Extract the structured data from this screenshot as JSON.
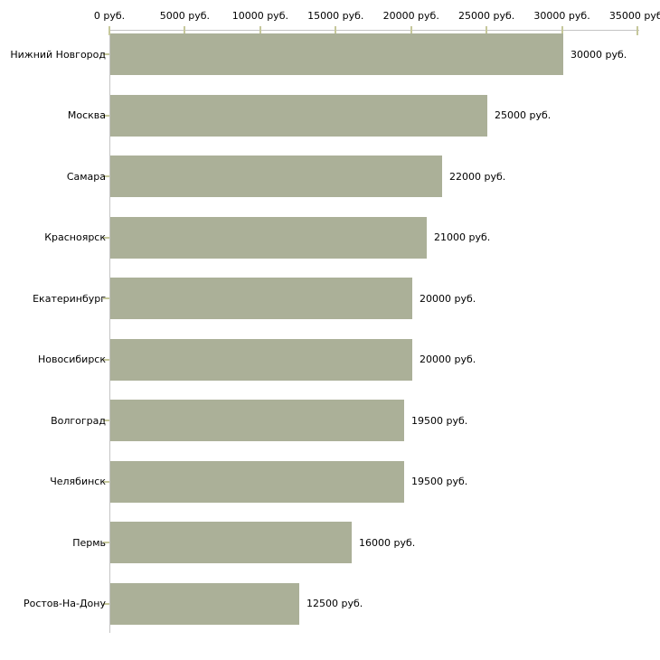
{
  "chart_data": {
    "type": "bar",
    "orientation": "horizontal",
    "title": "",
    "xlabel": "",
    "ylabel": "",
    "unit": "руб.",
    "categories": [
      "Нижний Новгород",
      "Москва",
      "Самара",
      "Красноярск",
      "Екатеринбург",
      "Новосибирск",
      "Волгоград",
      "Челябинск",
      "Пермь",
      "Ростов-На-Дону"
    ],
    "values": [
      30000,
      25000,
      22000,
      21000,
      20000,
      20000,
      19500,
      19500,
      16000,
      12500
    ],
    "value_labels": [
      "30000 руб.",
      "25000 руб.",
      "22000 руб.",
      "21000 руб.",
      "20000 руб.",
      "20000 руб.",
      "19500 руб.",
      "19500 руб.",
      "16000 руб.",
      "12500 руб."
    ],
    "xlim": [
      0,
      35000
    ],
    "x_ticks": [
      0,
      5000,
      10000,
      15000,
      20000,
      25000,
      30000,
      35000
    ],
    "x_tick_labels": [
      "0 руб.",
      "5000 руб.",
      "10000 руб.",
      "15000 руб.",
      "20000 руб.",
      "25000 руб.",
      "30000 руб.",
      "35000 руб."
    ],
    "grid": false,
    "legend": "none",
    "colors": {
      "bar_fill": "#abb098",
      "axis_line": "#c4c4c4",
      "tick_mark": "#c6c89b",
      "text": "#000000",
      "background": "#ffffff"
    }
  }
}
